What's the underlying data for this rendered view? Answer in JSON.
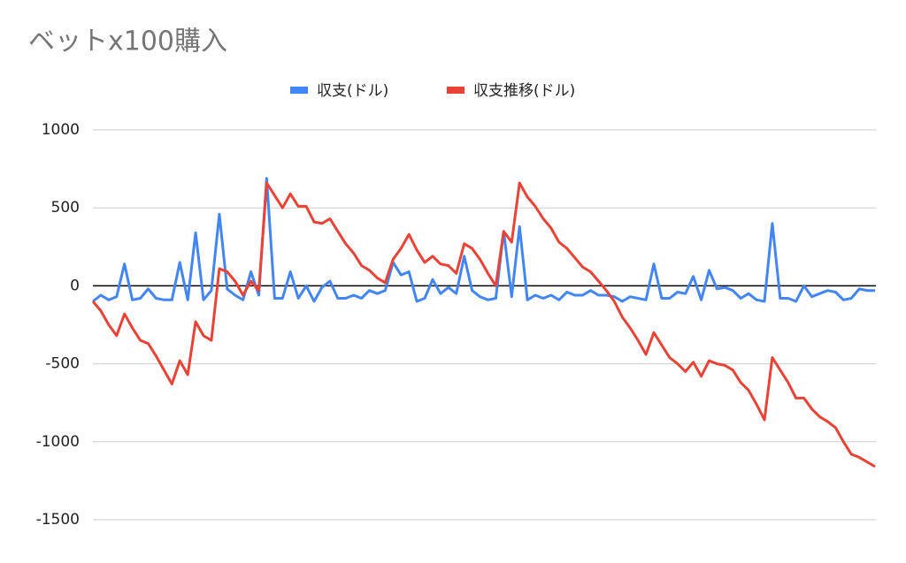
{
  "chart_data": {
    "type": "line",
    "title": "ベットx100購入",
    "categories": [
      null,
      null,
      null,
      null,
      null,
      null,
      null,
      null,
      null,
      null,
      null,
      null,
      null,
      null,
      null,
      null,
      null,
      null,
      null,
      null,
      null,
      null,
      null,
      null,
      null,
      null,
      null,
      null,
      null,
      null,
      null,
      null,
      null,
      null,
      null,
      null,
      null,
      null,
      null,
      null,
      null,
      null,
      null,
      null,
      null,
      null,
      null,
      null,
      null,
      null,
      null,
      null,
      null,
      null,
      null,
      null,
      null,
      null,
      null,
      null,
      null,
      null,
      null,
      null,
      null,
      null,
      null,
      null,
      null,
      null,
      null,
      null,
      null,
      null,
      null,
      null,
      null,
      null,
      null,
      null,
      null,
      null,
      null,
      null,
      null,
      null,
      null,
      null,
      null,
      null,
      null,
      null,
      null,
      null,
      null,
      null,
      null,
      null,
      null,
      null
    ],
    "series": [
      {
        "name": "収支(ドル)",
        "color": "#4285f4",
        "values": [
          -100,
          -60,
          -90,
          -70,
          140,
          -90,
          -80,
          -20,
          -80,
          -90,
          -90,
          150,
          -90,
          340,
          -90,
          -30,
          460,
          -20,
          -60,
          -90,
          90,
          -60,
          690,
          -80,
          -80,
          90,
          -80,
          0,
          -100,
          -10,
          30,
          -80,
          -80,
          -60,
          -80,
          -30,
          -50,
          -30,
          150,
          70,
          90,
          -100,
          -80,
          40,
          -50,
          -10,
          -50,
          190,
          -30,
          -70,
          -90,
          -80,
          350,
          -70,
          380,
          -90,
          -60,
          -80,
          -60,
          -90,
          -40,
          -60,
          -60,
          -30,
          -60,
          -60,
          -70,
          -100,
          -70,
          -80,
          -90,
          140,
          -80,
          -80,
          -40,
          -50,
          60,
          -90,
          100,
          -20,
          -10,
          -30,
          -80,
          -50,
          -90,
          -100,
          400,
          -80,
          -80,
          -100,
          0,
          -70,
          -50,
          -30,
          -40,
          -90,
          -80,
          -20,
          -30,
          -30
        ]
      },
      {
        "name": "収支推移(ドル)",
        "color": "#ea4335",
        "values": [
          -100,
          -160,
          -250,
          -320,
          -180,
          -270,
          -350,
          -370,
          -450,
          -540,
          -630,
          -480,
          -570,
          -230,
          -320,
          -350,
          110,
          90,
          30,
          -60,
          30,
          -30,
          660,
          580,
          500,
          590,
          510,
          510,
          410,
          400,
          430,
          350,
          270,
          210,
          130,
          100,
          50,
          20,
          170,
          240,
          330,
          230,
          150,
          190,
          140,
          130,
          80,
          270,
          240,
          170,
          80,
          0,
          350,
          280,
          660,
          570,
          510,
          430,
          370,
          280,
          240,
          180,
          120,
          90,
          30,
          -30,
          -100,
          -200,
          -270,
          -350,
          -440,
          -300,
          -380,
          -460,
          -500,
          -550,
          -490,
          -580,
          -480,
          -500,
          -510,
          -540,
          -620,
          -670,
          -760,
          -860,
          -460,
          -540,
          -620,
          -720,
          -720,
          -790,
          -840,
          -870,
          -910,
          -1000,
          -1080,
          -1100,
          -1130,
          -1160
        ]
      }
    ],
    "ylim": [
      -1500,
      1000
    ],
    "yticks": [
      -1500,
      -1000,
      -500,
      0,
      500,
      1000
    ],
    "grid": true
  }
}
